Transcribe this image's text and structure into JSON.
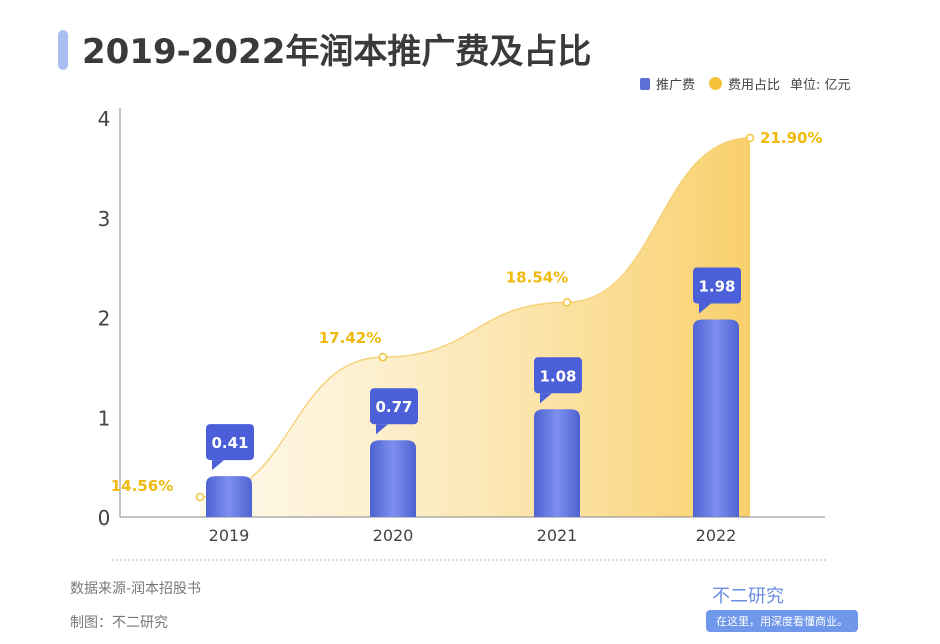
{
  "title": "2019-2022年润本推广费及占比",
  "legend": {
    "bar": "推广费",
    "line": "费用占比",
    "unit": "单位: 亿元"
  },
  "footer": {
    "source": "数据来源-润本招股书",
    "credit": "制图：不二研究",
    "brand": "不二研究",
    "slogan": "在这里，用深度看懂商业。"
  },
  "colors": {
    "bar": "#5b6fd8",
    "line": "#f5c33b",
    "label_text": "#f0b90b",
    "axis": "#888888"
  },
  "chart_data": {
    "type": "bar+line",
    "categories": [
      "2019",
      "2020",
      "2021",
      "2022"
    ],
    "series": [
      {
        "name": "推广费",
        "type": "bar",
        "values": [
          0.41,
          0.77,
          1.08,
          1.98
        ],
        "labels": [
          "0.41",
          "0.77",
          "1.08",
          "1.98"
        ]
      },
      {
        "name": "费用占比",
        "type": "area",
        "values": [
          14.56,
          17.42,
          18.54,
          21.9
        ],
        "labels": [
          "14.56%",
          "17.42%",
          "18.54%",
          "21.90%"
        ]
      }
    ],
    "ylim": [
      0,
      4
    ],
    "yticks": [
      "0",
      "1",
      "2",
      "3",
      "4"
    ],
    "grid": false,
    "legend_position": "top-right"
  }
}
